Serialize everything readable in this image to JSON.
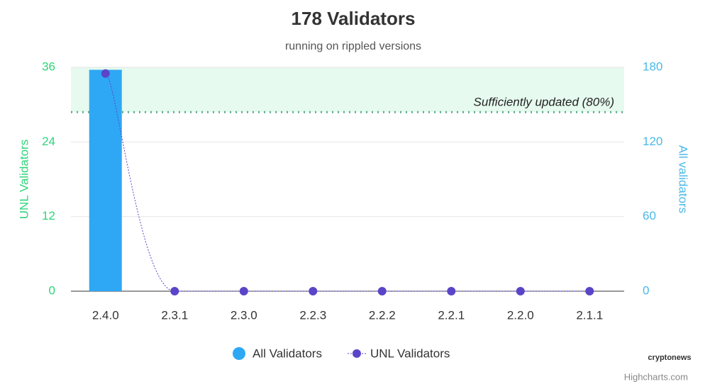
{
  "chart_data": {
    "type": "bar",
    "title": "178 Validators",
    "subtitle": "running on rippled versions",
    "categories": [
      "2.4.0",
      "2.3.1",
      "2.3.0",
      "2.2.3",
      "2.2.2",
      "2.2.1",
      "2.2.0",
      "2.1.1"
    ],
    "series": [
      {
        "name": "All Validators",
        "type": "bar",
        "axis": "y2",
        "color": "#2ea8f5",
        "values": [
          178,
          0,
          0,
          0,
          0,
          0,
          0,
          0
        ]
      },
      {
        "name": "UNL Validators",
        "type": "line",
        "axis": "y",
        "color": "#5a45c8",
        "values": [
          35,
          0,
          0,
          0,
          0,
          0,
          0,
          0
        ]
      }
    ],
    "ylabel": "UNL Validators",
    "y2label": "All validators",
    "ylim": [
      0,
      36
    ],
    "yticks": [
      0,
      12,
      24,
      36
    ],
    "y2lim": [
      0,
      180
    ],
    "y2ticks": [
      0,
      60,
      120,
      180
    ],
    "grid": true,
    "annotation": {
      "text": "Sufficiently updated (80%)",
      "value": 28.8
    },
    "legend": "bottom",
    "watermark": "cryptonews",
    "credits": "Highcharts.com"
  }
}
